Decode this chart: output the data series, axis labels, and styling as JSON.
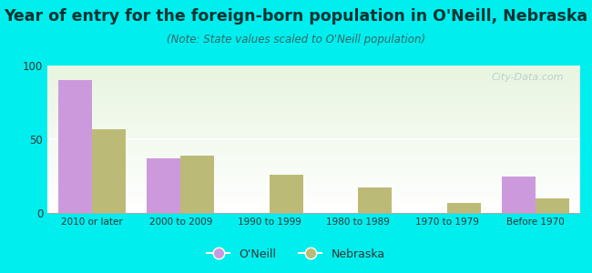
{
  "categories": [
    "2010 or later",
    "2000 to 2009",
    "1990 to 1999",
    "1980 to 1989",
    "1970 to 1979",
    "Before 1970"
  ],
  "oneill_values": [
    90,
    37,
    0,
    0,
    0,
    25
  ],
  "nebraska_values": [
    57,
    39,
    26,
    17,
    7,
    10
  ],
  "oneill_color": "#cc99dd",
  "nebraska_color": "#bbbb77",
  "title": "Year of entry for the foreign-born population in O'Neill, Nebraska",
  "subtitle": "(Note: State values scaled to O'Neill population)",
  "legend_oneill": "O'Neill",
  "legend_nebraska": "Nebraska",
  "ylim": [
    0,
    100
  ],
  "yticks": [
    0,
    50,
    100
  ],
  "background_color": "#00eeee",
  "title_color": "#003333",
  "subtitle_color": "#336666",
  "title_fontsize": 12.5,
  "subtitle_fontsize": 8.5,
  "bar_width": 0.38,
  "watermark_color": "#b0c8c8"
}
